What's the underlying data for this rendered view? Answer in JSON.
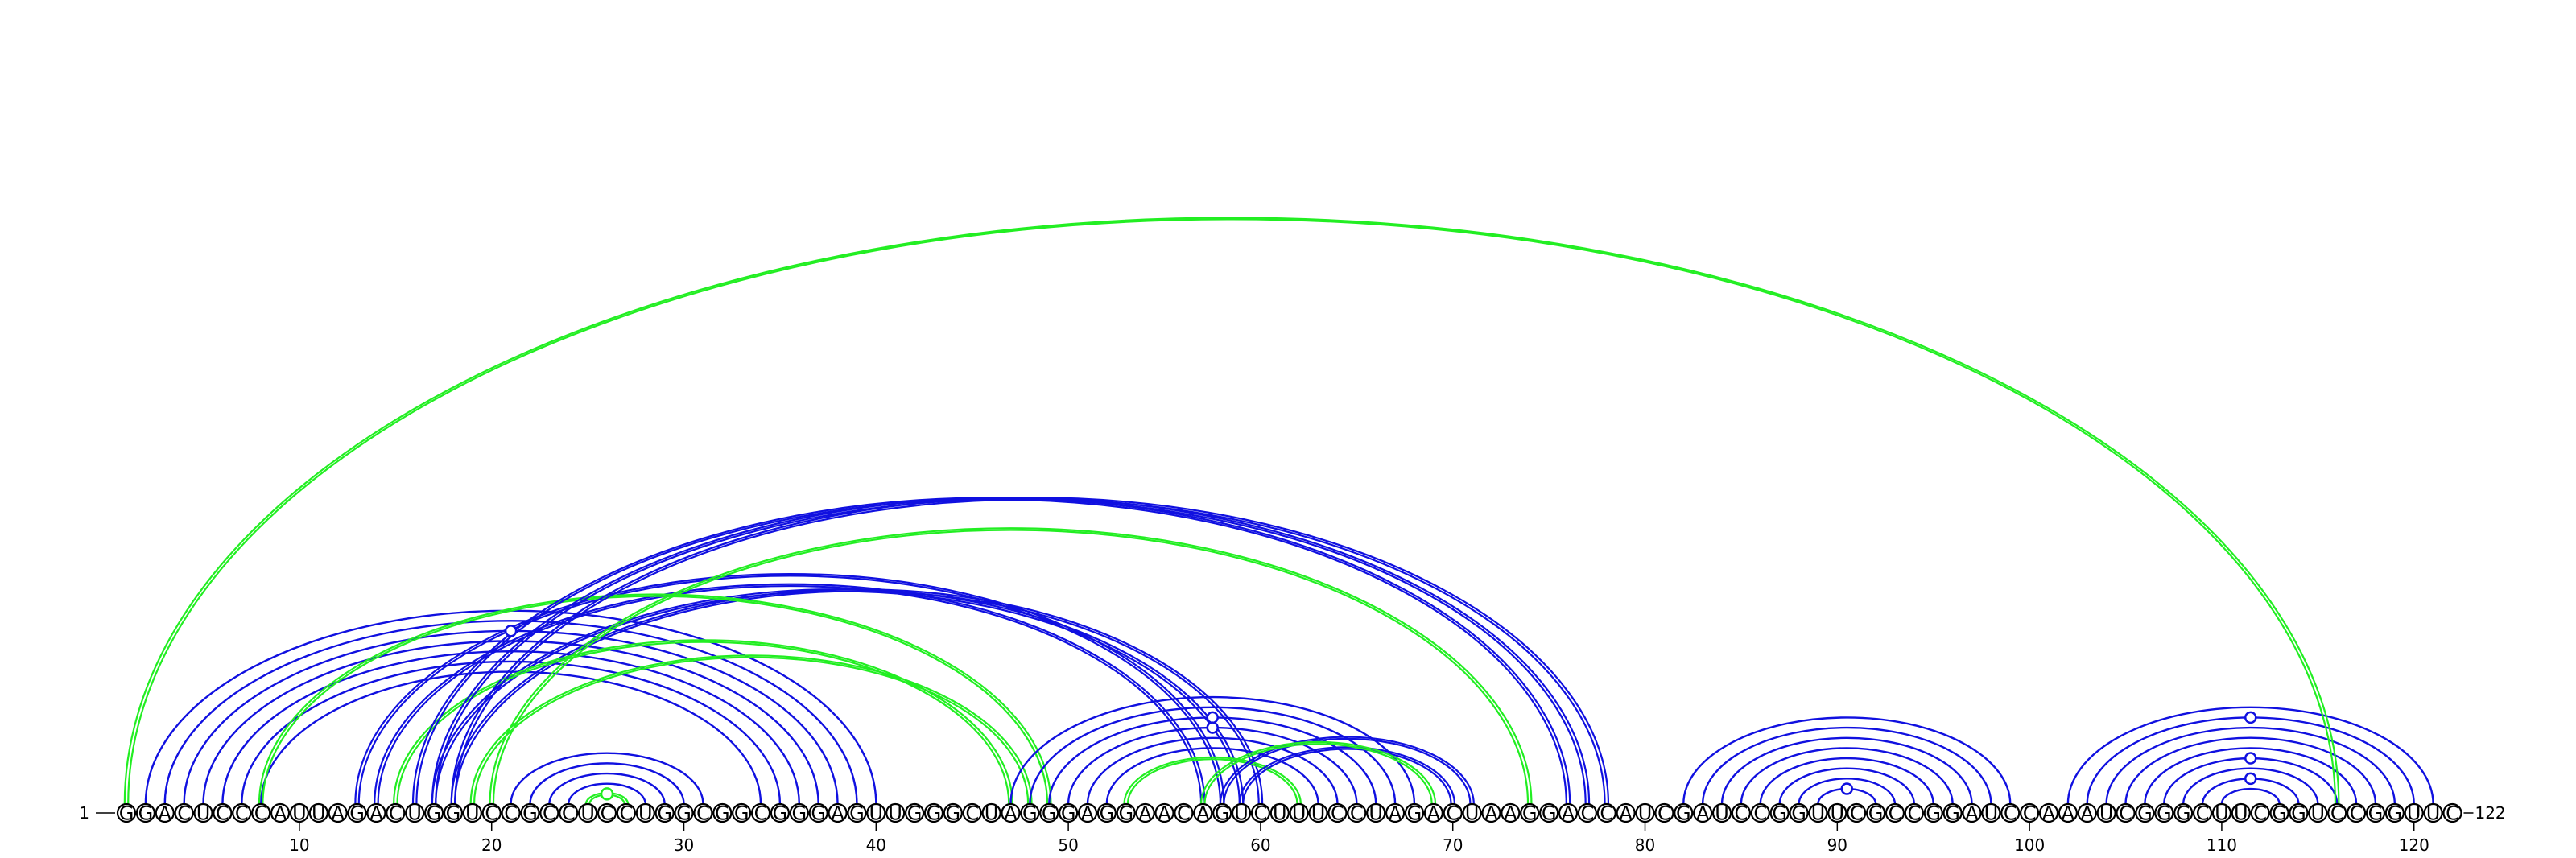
{
  "diagram": {
    "type": "rna-arc-diagram",
    "sequence": "GGACUCCCAUUAGACUGGUCCGCCUCCUGGCGGCGGGAGUUGGGCUAGGGAGGAACAGUCUUUCCUAGACUAAGGACCAUCGAUCCGGUUCGCCGGAUCCAAAUCGGGCUUCGGUCCGGUUC",
    "start_label": "1",
    "end_label": "122",
    "tick_labels": [
      "10",
      "20",
      "30",
      "40",
      "50",
      "60",
      "70",
      "80",
      "90",
      "100",
      "110",
      "120"
    ],
    "tick_positions": [
      10,
      20,
      30,
      40,
      50,
      60,
      70,
      80,
      90,
      100,
      110,
      120
    ],
    "colors": {
      "blue": "#1010e0",
      "green": "#22ee22",
      "circle_stroke": "#000000"
    },
    "arc_groups": [
      {
        "color": "blue",
        "style": "single",
        "pairs": [
          [
            2,
            40
          ],
          [
            3,
            39
          ],
          [
            4,
            38
          ],
          [
            5,
            37
          ],
          [
            6,
            36
          ],
          [
            7,
            35
          ],
          [
            8,
            34
          ]
        ]
      },
      {
        "color": "blue",
        "style": "single",
        "pairs": [
          [
            21,
            31
          ],
          [
            22,
            30
          ],
          [
            23,
            29
          ],
          [
            24,
            28
          ]
        ]
      },
      {
        "color": "green",
        "style": "double",
        "pairs": [
          [
            25,
            27
          ]
        ]
      },
      {
        "color": "blue",
        "style": "double",
        "pairs": [
          [
            13,
            58
          ],
          [
            14,
            57
          ]
        ]
      },
      {
        "color": "blue",
        "style": "double",
        "pairs": [
          [
            17,
            59
          ],
          [
            18,
            60
          ]
        ]
      },
      {
        "color": "green",
        "style": "double",
        "pairs": [
          [
            15,
            47
          ],
          [
            19,
            48
          ]
        ]
      },
      {
        "color": "green",
        "style": "double",
        "pairs": [
          [
            8,
            49
          ]
        ]
      },
      {
        "color": "blue",
        "style": "double",
        "pairs": [
          [
            16,
            76
          ],
          [
            17,
            77
          ],
          [
            18,
            78
          ]
        ]
      },
      {
        "color": "green",
        "style": "double",
        "pairs": [
          [
            20,
            74
          ]
        ]
      },
      {
        "color": "blue",
        "style": "single",
        "pairs": [
          [
            47,
            68
          ],
          [
            48,
            67
          ],
          [
            49,
            66
          ],
          [
            50,
            65
          ],
          [
            51,
            64
          ],
          [
            52,
            63
          ]
        ]
      },
      {
        "color": "green",
        "style": "double",
        "pairs": [
          [
            53,
            62
          ]
        ]
      },
      {
        "color": "blue",
        "style": "double",
        "pairs": [
          [
            58,
            71
          ],
          [
            59,
            70
          ]
        ]
      },
      {
        "color": "green",
        "style": "double",
        "pairs": [
          [
            57,
            69
          ]
        ]
      },
      {
        "color": "blue",
        "style": "single",
        "pairs": [
          [
            82,
            99
          ],
          [
            83,
            98
          ],
          [
            84,
            97
          ],
          [
            85,
            96
          ],
          [
            86,
            95
          ],
          [
            87,
            94
          ],
          [
            88,
            93
          ],
          [
            89,
            92
          ]
        ]
      },
      {
        "color": "blue",
        "style": "single",
        "pairs": [
          [
            102,
            121
          ],
          [
            103,
            120
          ],
          [
            104,
            119
          ],
          [
            105,
            118
          ],
          [
            106,
            117
          ],
          [
            107,
            116
          ],
          [
            108,
            115
          ],
          [
            109,
            114
          ],
          [
            110,
            113
          ]
        ]
      },
      {
        "color": "green",
        "style": "double",
        "pairs": [
          [
            1,
            116
          ]
        ]
      }
    ],
    "markers": [
      {
        "color": "blue",
        "filled": false,
        "i": 4,
        "j": 38
      },
      {
        "color": "green",
        "filled": true,
        "i": 25,
        "j": 27
      },
      {
        "color": "blue",
        "filled": false,
        "i": 49,
        "j": 66
      },
      {
        "color": "blue",
        "filled": false,
        "i": 50,
        "j": 65
      },
      {
        "color": "blue",
        "filled": false,
        "i": 89,
        "j": 92
      },
      {
        "color": "blue",
        "filled": false,
        "i": 103,
        "j": 120
      },
      {
        "color": "blue",
        "filled": false,
        "i": 107,
        "j": 116
      },
      {
        "color": "blue",
        "filled": false,
        "i": 109,
        "j": 114
      }
    ]
  }
}
